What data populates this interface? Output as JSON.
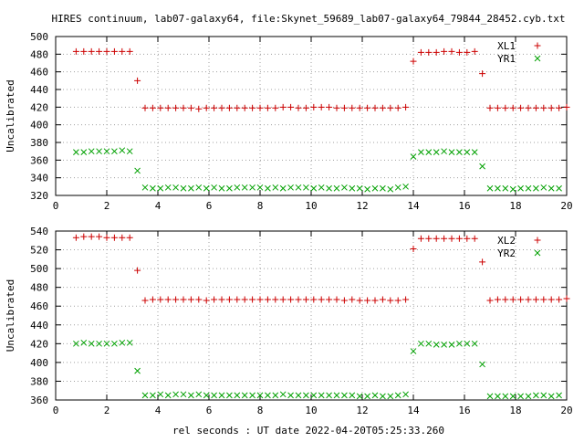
{
  "title": "HIRES continuum, lab07-galaxy64, file:Skynet_59689_lab07-galaxy64_79844_28452.cyb.txt",
  "xlabel": "rel seconds : UT date 2022-04-20T05:25:33.260",
  "colors": {
    "red": "#cc0000",
    "green": "#00a000",
    "axis": "#000000",
    "grid": "#a0a0a0"
  },
  "chart_data": [
    {
      "type": "scatter",
      "ylabel": "Uncalibrated",
      "xlim": [
        0,
        20
      ],
      "ylim": [
        320,
        500
      ],
      "xticks": [
        0,
        2,
        4,
        6,
        8,
        10,
        12,
        14,
        16,
        18,
        20
      ],
      "yticks": [
        320,
        340,
        360,
        380,
        400,
        420,
        440,
        460,
        480,
        500
      ],
      "grid": true,
      "legend_position": "top-right",
      "series": [
        {
          "name": "XL1",
          "marker": "+",
          "color": "red",
          "x": [
            0.8,
            1.1,
            1.4,
            1.7,
            2.0,
            2.3,
            2.6,
            2.9,
            3.2,
            3.5,
            3.8,
            4.1,
            4.4,
            4.7,
            5.0,
            5.3,
            5.6,
            5.9,
            6.2,
            6.5,
            6.8,
            7.1,
            7.4,
            7.7,
            8.0,
            8.3,
            8.6,
            8.9,
            9.2,
            9.5,
            9.8,
            10.1,
            10.4,
            10.7,
            11.0,
            11.3,
            11.6,
            11.9,
            12.2,
            12.5,
            12.8,
            13.1,
            13.4,
            13.7,
            14.0,
            14.3,
            14.6,
            14.9,
            15.2,
            15.5,
            15.8,
            16.1,
            16.4,
            16.7,
            17.0,
            17.3,
            17.6,
            17.9,
            18.2,
            18.5,
            18.8,
            19.1,
            19.4,
            19.7,
            20.0
          ],
          "y": [
            483,
            483,
            483,
            483,
            483,
            483,
            483,
            483,
            450,
            419,
            419,
            419,
            419,
            419,
            419,
            419,
            418,
            419,
            419,
            419,
            419,
            419,
            419,
            419,
            419,
            419,
            419,
            420,
            420,
            419,
            419,
            420,
            420,
            420,
            419,
            419,
            419,
            419,
            419,
            419,
            419,
            419,
            419,
            420,
            472,
            482,
            482,
            482,
            483,
            483,
            482,
            482,
            483,
            458,
            419,
            419,
            419,
            419,
            419,
            419,
            419,
            419,
            419,
            419,
            420
          ]
        },
        {
          "name": "YR1",
          "marker": "x",
          "color": "green",
          "x": [
            0.8,
            1.1,
            1.4,
            1.7,
            2.0,
            2.3,
            2.6,
            2.9,
            3.2,
            3.5,
            3.8,
            4.1,
            4.4,
            4.7,
            5.0,
            5.3,
            5.6,
            5.9,
            6.2,
            6.5,
            6.8,
            7.1,
            7.4,
            7.7,
            8.0,
            8.3,
            8.6,
            8.9,
            9.2,
            9.5,
            9.8,
            10.1,
            10.4,
            10.7,
            11.0,
            11.3,
            11.6,
            11.9,
            12.2,
            12.5,
            12.8,
            13.1,
            13.4,
            13.7,
            14.0,
            14.3,
            14.6,
            14.9,
            15.2,
            15.5,
            15.8,
            16.1,
            16.4,
            16.7,
            17.0,
            17.3,
            17.6,
            17.9,
            18.2,
            18.5,
            18.8,
            19.1,
            19.4,
            19.7
          ],
          "y": [
            369,
            369,
            370,
            370,
            370,
            370,
            371,
            370,
            348,
            329,
            328,
            328,
            329,
            329,
            328,
            328,
            329,
            328,
            329,
            328,
            328,
            329,
            329,
            329,
            329,
            328,
            329,
            328,
            329,
            329,
            329,
            328,
            329,
            328,
            328,
            329,
            328,
            328,
            327,
            328,
            328,
            327,
            329,
            330,
            364,
            369,
            369,
            369,
            370,
            369,
            369,
            369,
            369,
            353,
            328,
            328,
            328,
            327,
            328,
            328,
            328,
            329,
            328,
            328
          ]
        }
      ]
    },
    {
      "type": "scatter",
      "ylabel": "Uncalibrated",
      "xlim": [
        0,
        20
      ],
      "ylim": [
        360,
        540
      ],
      "xticks": [
        0,
        2,
        4,
        6,
        8,
        10,
        12,
        14,
        16,
        18,
        20
      ],
      "yticks": [
        360,
        380,
        400,
        420,
        440,
        460,
        480,
        500,
        520,
        540
      ],
      "grid": true,
      "legend_position": "top-right",
      "series": [
        {
          "name": "XL2",
          "marker": "+",
          "color": "red",
          "x": [
            0.8,
            1.1,
            1.4,
            1.7,
            2.0,
            2.3,
            2.6,
            2.9,
            3.2,
            3.5,
            3.8,
            4.1,
            4.4,
            4.7,
            5.0,
            5.3,
            5.6,
            5.9,
            6.2,
            6.5,
            6.8,
            7.1,
            7.4,
            7.7,
            8.0,
            8.3,
            8.6,
            8.9,
            9.2,
            9.5,
            9.8,
            10.1,
            10.4,
            10.7,
            11.0,
            11.3,
            11.6,
            11.9,
            12.2,
            12.5,
            12.8,
            13.1,
            13.4,
            13.7,
            14.0,
            14.3,
            14.6,
            14.9,
            15.2,
            15.5,
            15.8,
            16.1,
            16.4,
            16.7,
            17.0,
            17.3,
            17.6,
            17.9,
            18.2,
            18.5,
            18.8,
            19.1,
            19.4,
            19.7,
            20.0
          ],
          "y": [
            533,
            534,
            534,
            534,
            533,
            533,
            533,
            533,
            498,
            466,
            467,
            467,
            467,
            467,
            467,
            467,
            467,
            466,
            467,
            467,
            467,
            467,
            467,
            467,
            467,
            467,
            467,
            467,
            467,
            467,
            467,
            467,
            467,
            467,
            467,
            466,
            467,
            466,
            466,
            466,
            467,
            466,
            466,
            467,
            521,
            532,
            532,
            532,
            532,
            532,
            532,
            532,
            532,
            507,
            466,
            467,
            467,
            467,
            467,
            467,
            467,
            467,
            467,
            467,
            468
          ]
        },
        {
          "name": "YR2",
          "marker": "x",
          "color": "green",
          "x": [
            0.8,
            1.1,
            1.4,
            1.7,
            2.0,
            2.3,
            2.6,
            2.9,
            3.2,
            3.5,
            3.8,
            4.1,
            4.4,
            4.7,
            5.0,
            5.3,
            5.6,
            5.9,
            6.2,
            6.5,
            6.8,
            7.1,
            7.4,
            7.7,
            8.0,
            8.3,
            8.6,
            8.9,
            9.2,
            9.5,
            9.8,
            10.1,
            10.4,
            10.7,
            11.0,
            11.3,
            11.6,
            11.9,
            12.2,
            12.5,
            12.8,
            13.1,
            13.4,
            13.7,
            14.0,
            14.3,
            14.6,
            14.9,
            15.2,
            15.5,
            15.8,
            16.1,
            16.4,
            16.7,
            17.0,
            17.3,
            17.6,
            17.9,
            18.2,
            18.5,
            18.8,
            19.1,
            19.4,
            19.7
          ],
          "y": [
            420,
            421,
            420,
            420,
            420,
            420,
            421,
            421,
            391,
            365,
            365,
            366,
            365,
            366,
            366,
            365,
            366,
            365,
            365,
            365,
            365,
            365,
            365,
            365,
            365,
            365,
            365,
            366,
            365,
            365,
            365,
            365,
            365,
            365,
            365,
            365,
            365,
            364,
            364,
            365,
            364,
            364,
            365,
            366,
            412,
            420,
            420,
            419,
            419,
            419,
            420,
            420,
            420,
            398,
            364,
            364,
            364,
            364,
            364,
            364,
            365,
            365,
            364,
            365
          ]
        }
      ]
    }
  ]
}
